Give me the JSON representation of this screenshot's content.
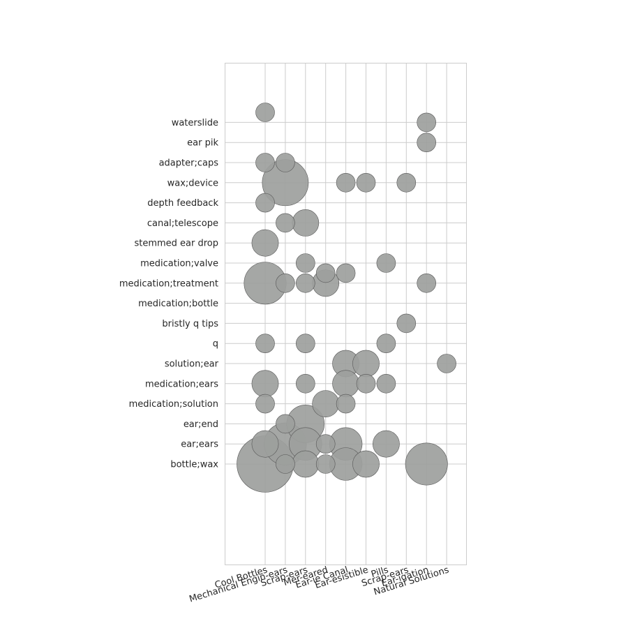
{
  "chart_data": {
    "type": "scatter",
    "title": "",
    "xlabel": "",
    "ylabel": "",
    "grid": true,
    "bubble_color": "#9d9f9d",
    "x_categories": [
      "Cool Bottles",
      "Mechanical Engin-ears",
      "Scrap-ears",
      "Mer-eared",
      "Ear-ie Canal",
      "Ear-esistible",
      "Pills",
      "Scrap-ears",
      "Ear-igation",
      "Natural Solutions"
    ],
    "y_categories": [
      "bottle;wax",
      "ear;ears",
      "ear;end",
      "medication;solution",
      "medication;ears",
      "solution;ear",
      "q",
      "bristly q tips",
      "medication;bottle",
      "medication;treatment",
      "medication;valve",
      "stemmed ear drop",
      "canal;telescope",
      "depth feedback",
      "wax;device",
      "adapter;caps",
      "ear pik",
      "waterslide"
    ],
    "points": [
      {
        "x": 0,
        "y": 17.5,
        "size": 1
      },
      {
        "x": 0,
        "y": 15,
        "size": 1
      },
      {
        "x": 0,
        "y": 13,
        "size": 1
      },
      {
        "x": 0,
        "y": 11,
        "size": 2
      },
      {
        "x": 0,
        "y": 9,
        "size": 5
      },
      {
        "x": 0,
        "y": 6,
        "size": 1
      },
      {
        "x": 0,
        "y": 4,
        "size": 2
      },
      {
        "x": 0,
        "y": 3,
        "size": 1
      },
      {
        "x": 0,
        "y": 1,
        "size": 2
      },
      {
        "x": 0,
        "y": 0,
        "size": 9
      },
      {
        "x": 1,
        "y": 15,
        "size": 1
      },
      {
        "x": 1,
        "y": 14,
        "size": 6
      },
      {
        "x": 1,
        "y": 12,
        "size": 1
      },
      {
        "x": 1,
        "y": 9,
        "size": 1
      },
      {
        "x": 1,
        "y": 2,
        "size": 1
      },
      {
        "x": 1,
        "y": 1,
        "size": 5
      },
      {
        "x": 1,
        "y": 0,
        "size": 1
      },
      {
        "x": 2,
        "y": 12,
        "size": 2
      },
      {
        "x": 2,
        "y": 10,
        "size": 1
      },
      {
        "x": 2,
        "y": 9,
        "size": 1
      },
      {
        "x": 2,
        "y": 6,
        "size": 1
      },
      {
        "x": 2,
        "y": 4,
        "size": 1
      },
      {
        "x": 2,
        "y": 2,
        "size": 4
      },
      {
        "x": 2,
        "y": 1,
        "size": 3
      },
      {
        "x": 2,
        "y": 0,
        "size": 2
      },
      {
        "x": 3,
        "y": 9.5,
        "size": 1
      },
      {
        "x": 3,
        "y": 9,
        "size": 2
      },
      {
        "x": 3,
        "y": 3,
        "size": 2
      },
      {
        "x": 3,
        "y": 1,
        "size": 1
      },
      {
        "x": 3,
        "y": 0,
        "size": 1
      },
      {
        "x": 4,
        "y": 14,
        "size": 1
      },
      {
        "x": 4,
        "y": 9.5,
        "size": 1
      },
      {
        "x": 4,
        "y": 5,
        "size": 2
      },
      {
        "x": 4,
        "y": 4,
        "size": 2
      },
      {
        "x": 4,
        "y": 3,
        "size": 1
      },
      {
        "x": 4,
        "y": 1,
        "size": 3
      },
      {
        "x": 4,
        "y": 0,
        "size": 3
      },
      {
        "x": 5,
        "y": 14,
        "size": 1
      },
      {
        "x": 5,
        "y": 5,
        "size": 2
      },
      {
        "x": 5,
        "y": 4,
        "size": 1
      },
      {
        "x": 5,
        "y": 0,
        "size": 2
      },
      {
        "x": 6,
        "y": 10,
        "size": 1
      },
      {
        "x": 6,
        "y": 6,
        "size": 1
      },
      {
        "x": 6,
        "y": 4,
        "size": 1
      },
      {
        "x": 6,
        "y": 1,
        "size": 2
      },
      {
        "x": 7,
        "y": 14,
        "size": 1
      },
      {
        "x": 7,
        "y": 7,
        "size": 1
      },
      {
        "x": 8,
        "y": 9,
        "size": 1
      },
      {
        "x": 8,
        "y": 16,
        "size": 1
      },
      {
        "x": 8,
        "y": 17,
        "size": 1
      },
      {
        "x": 8,
        "y": 0,
        "size": 5
      },
      {
        "x": 9,
        "y": 5,
        "size": 1
      }
    ]
  }
}
